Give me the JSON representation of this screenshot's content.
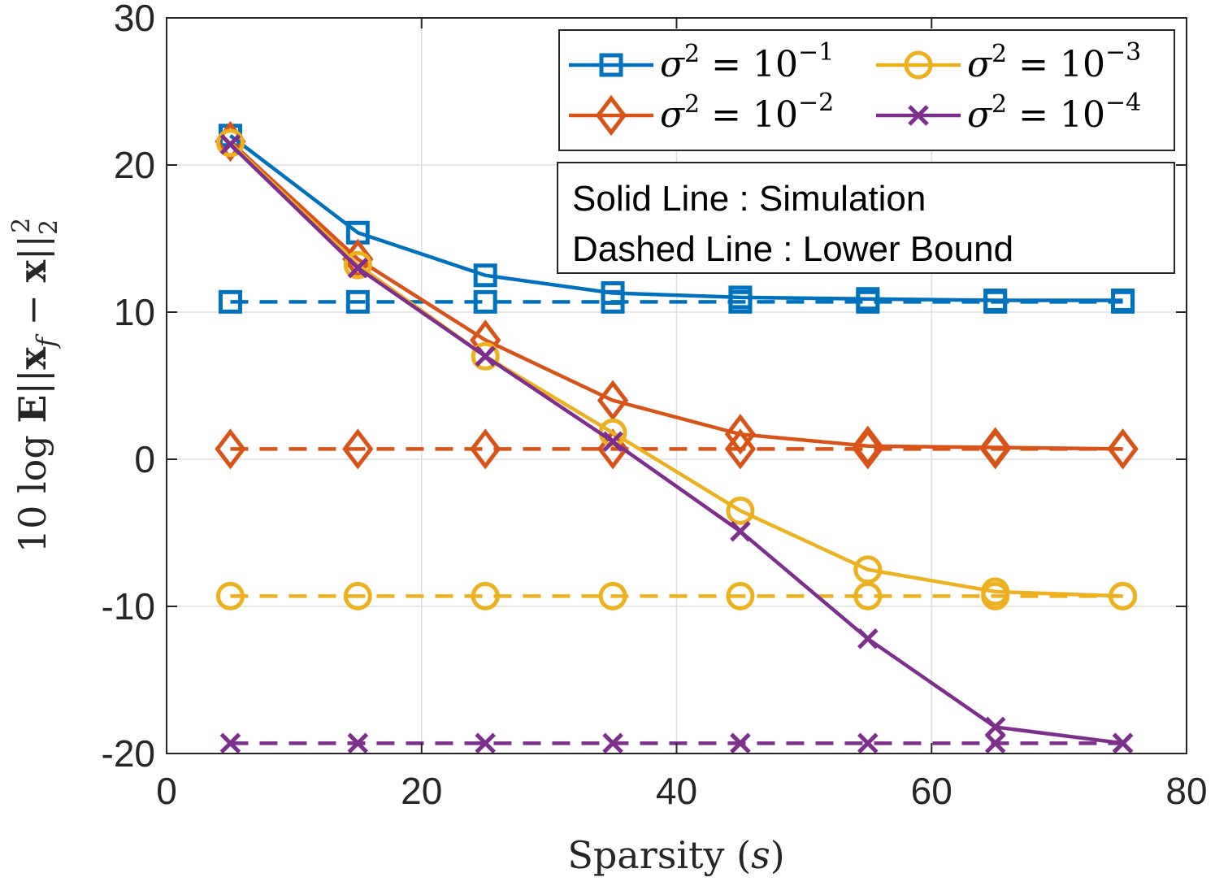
{
  "chart_data": {
    "type": "line",
    "xlabel": "Sparsity (s)",
    "ylabel": "10 log E||x_f − x||₂²",
    "xlim": [
      0,
      80
    ],
    "ylim": [
      -20,
      30
    ],
    "xticks": [
      "0",
      "20",
      "40",
      "60",
      "80"
    ],
    "yticks": [
      "-20",
      "-10",
      "0",
      "10",
      "20",
      "30"
    ],
    "grid": true,
    "legend_position": "top-right",
    "x": [
      5,
      15,
      25,
      35,
      45,
      55,
      65,
      75
    ],
    "series": [
      {
        "name": "σ² = 10⁻¹",
        "label_base": "σ",
        "label_mid": " = 10",
        "label_exp": "−1",
        "marker": "square",
        "color": "#0072BD",
        "simulation": [
          22,
          15.4,
          12.5,
          11.3,
          11.0,
          10.9,
          10.8,
          10.8
        ],
        "lower_bound": [
          10.7,
          10.7,
          10.7,
          10.7,
          10.7,
          10.7,
          10.7,
          10.7
        ]
      },
      {
        "name": "σ² = 10⁻²",
        "label_base": "σ",
        "label_mid": " = 10",
        "label_exp": "−2",
        "marker": "diamond",
        "color": "#D95319",
        "simulation": [
          21.6,
          13.6,
          8.1,
          4.0,
          1.7,
          0.9,
          0.8,
          0.7
        ],
        "lower_bound": [
          0.7,
          0.7,
          0.7,
          0.7,
          0.7,
          0.7,
          0.7,
          0.7
        ]
      },
      {
        "name": "σ² = 10⁻³",
        "label_base": "σ",
        "label_mid": " = 10",
        "label_exp": "−3",
        "marker": "circle",
        "color": "#EDB120",
        "simulation": [
          21.5,
          13.2,
          7.0,
          1.8,
          -3.5,
          -7.5,
          -9.0,
          -9.3
        ],
        "lower_bound": [
          -9.3,
          -9.3,
          -9.3,
          -9.3,
          -9.3,
          -9.3,
          -9.3,
          -9.3
        ]
      },
      {
        "name": "σ² = 10⁻⁴",
        "label_base": "σ",
        "label_mid": " = 10",
        "label_exp": "−4",
        "marker": "x",
        "color": "#7E2F8E",
        "simulation": [
          21.4,
          13.0,
          7.0,
          1.2,
          -4.9,
          -12.2,
          -18.2,
          -19.3
        ],
        "lower_bound": [
          -19.3,
          -19.3,
          -19.3,
          -19.3,
          -19.3,
          -19.3,
          -19.3,
          -19.3
        ]
      }
    ],
    "annotations": [
      "Solid Line : Simulation",
      "Dashed Line : Lower Bound"
    ]
  }
}
